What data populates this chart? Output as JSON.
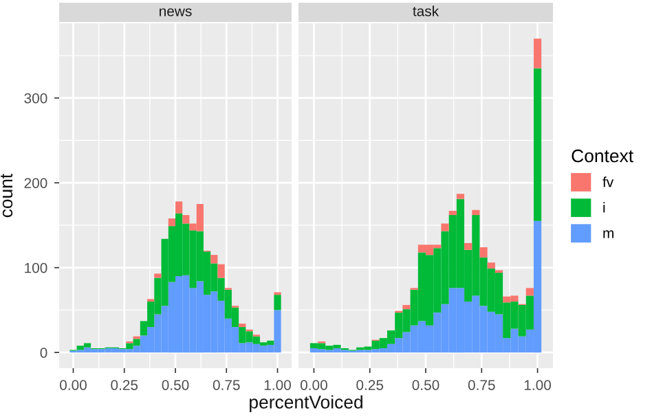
{
  "chart_data": [
    {
      "type": "bar",
      "title": "news",
      "xlabel": "percentVoiced",
      "ylabel": "count",
      "stacked": true,
      "grid": true,
      "x": [
        0,
        0.0345,
        0.069,
        0.1034,
        0.1379,
        0.1724,
        0.2069,
        0.2414,
        0.2759,
        0.3103,
        0.3448,
        0.3793,
        0.4138,
        0.4483,
        0.4828,
        0.5172,
        0.5517,
        0.5862,
        0.6207,
        0.6552,
        0.6897,
        0.7241,
        0.7586,
        0.7931,
        0.8276,
        0.8621,
        0.8966,
        0.931,
        0.9655,
        1.0
      ],
      "series": [
        {
          "color": "#619cff",
          "values": [
            2,
            3,
            6,
            4,
            4,
            5,
            5,
            4,
            4,
            8,
            20,
            30,
            45,
            55,
            83,
            90,
            91,
            76,
            84,
            68,
            72,
            61,
            40,
            30,
            11,
            12,
            10,
            8,
            9,
            50
          ]
        },
        {
          "color": "#00ba38",
          "values": [
            1,
            5,
            5,
            1,
            1,
            1,
            1,
            1,
            7,
            8,
            17,
            30,
            43,
            79,
            66,
            74,
            61,
            68,
            59,
            51,
            33,
            27,
            34,
            23,
            19,
            13,
            9,
            4,
            5,
            18
          ]
        },
        {
          "color": "#f8766d",
          "values": [
            0,
            0,
            0,
            0,
            0,
            0,
            0,
            0,
            2,
            3,
            0,
            3,
            5,
            0,
            9,
            14,
            10,
            8,
            32,
            1,
            10,
            16,
            2,
            2,
            4,
            2,
            2,
            0,
            0,
            3
          ]
        }
      ],
      "xlim": [
        -0.069,
        1.069
      ],
      "ylim": [
        -18.5,
        388
      ],
      "xticks": [
        {
          "value": 0,
          "label": "0.00"
        },
        {
          "value": 0.25,
          "label": "0.25"
        },
        {
          "value": 0.5,
          "label": "0.50"
        },
        {
          "value": 0.75,
          "label": "0.75"
        },
        {
          "value": 1,
          "label": "1.00"
        }
      ],
      "yticks": [
        0,
        100,
        200,
        300
      ]
    },
    {
      "type": "bar",
      "title": "task",
      "legend_title": "Context",
      "legend": "right",
      "stacked": true,
      "grid": true,
      "tick_labels": "x",
      "x": [
        0,
        0.0345,
        0.069,
        0.1034,
        0.1379,
        0.1724,
        0.2069,
        0.2414,
        0.2759,
        0.3103,
        0.3448,
        0.3793,
        0.4138,
        0.4483,
        0.4828,
        0.5172,
        0.5517,
        0.5862,
        0.6207,
        0.6552,
        0.6897,
        0.7241,
        0.7586,
        0.7931,
        0.8276,
        0.8621,
        0.8966,
        0.931,
        0.9655,
        1.0
      ],
      "series": [
        {
          "name": "m",
          "color": "#619cff",
          "values": [
            5,
            4,
            3,
            5,
            3,
            2,
            3,
            3,
            4,
            5,
            10,
            17,
            24,
            32,
            37,
            32,
            47,
            57,
            76,
            76,
            60,
            67,
            55,
            48,
            45,
            17,
            28,
            19,
            27,
            155
          ]
        },
        {
          "name": "i",
          "color": "#00ba38",
          "values": [
            6,
            7,
            5,
            4,
            2,
            1,
            3,
            4,
            10,
            12,
            16,
            30,
            27,
            42,
            81,
            83,
            76,
            86,
            86,
            105,
            61,
            95,
            57,
            51,
            49,
            42,
            32,
            37,
            40,
            180
          ]
        },
        {
          "name": "fv",
          "color": "#f8766d",
          "values": [
            0,
            2,
            0,
            0,
            0,
            0,
            0,
            0,
            1,
            0,
            0,
            2,
            5,
            2,
            9,
            12,
            4,
            9,
            5,
            6,
            8,
            6,
            12,
            7,
            3,
            7,
            7,
            1,
            9,
            35
          ]
        }
      ],
      "xlim": [
        -0.069,
        1.069
      ],
      "ylim": [
        -18.5,
        388
      ],
      "xticks": [
        {
          "value": 0,
          "label": "0.00"
        },
        {
          "value": 0.25,
          "label": "0.25"
        },
        {
          "value": 0.5,
          "label": "0.50"
        },
        {
          "value": 0.75,
          "label": "0.75"
        },
        {
          "value": 1,
          "label": "1.00"
        }
      ],
      "yticks": [
        0,
        100,
        200,
        300
      ]
    }
  ]
}
